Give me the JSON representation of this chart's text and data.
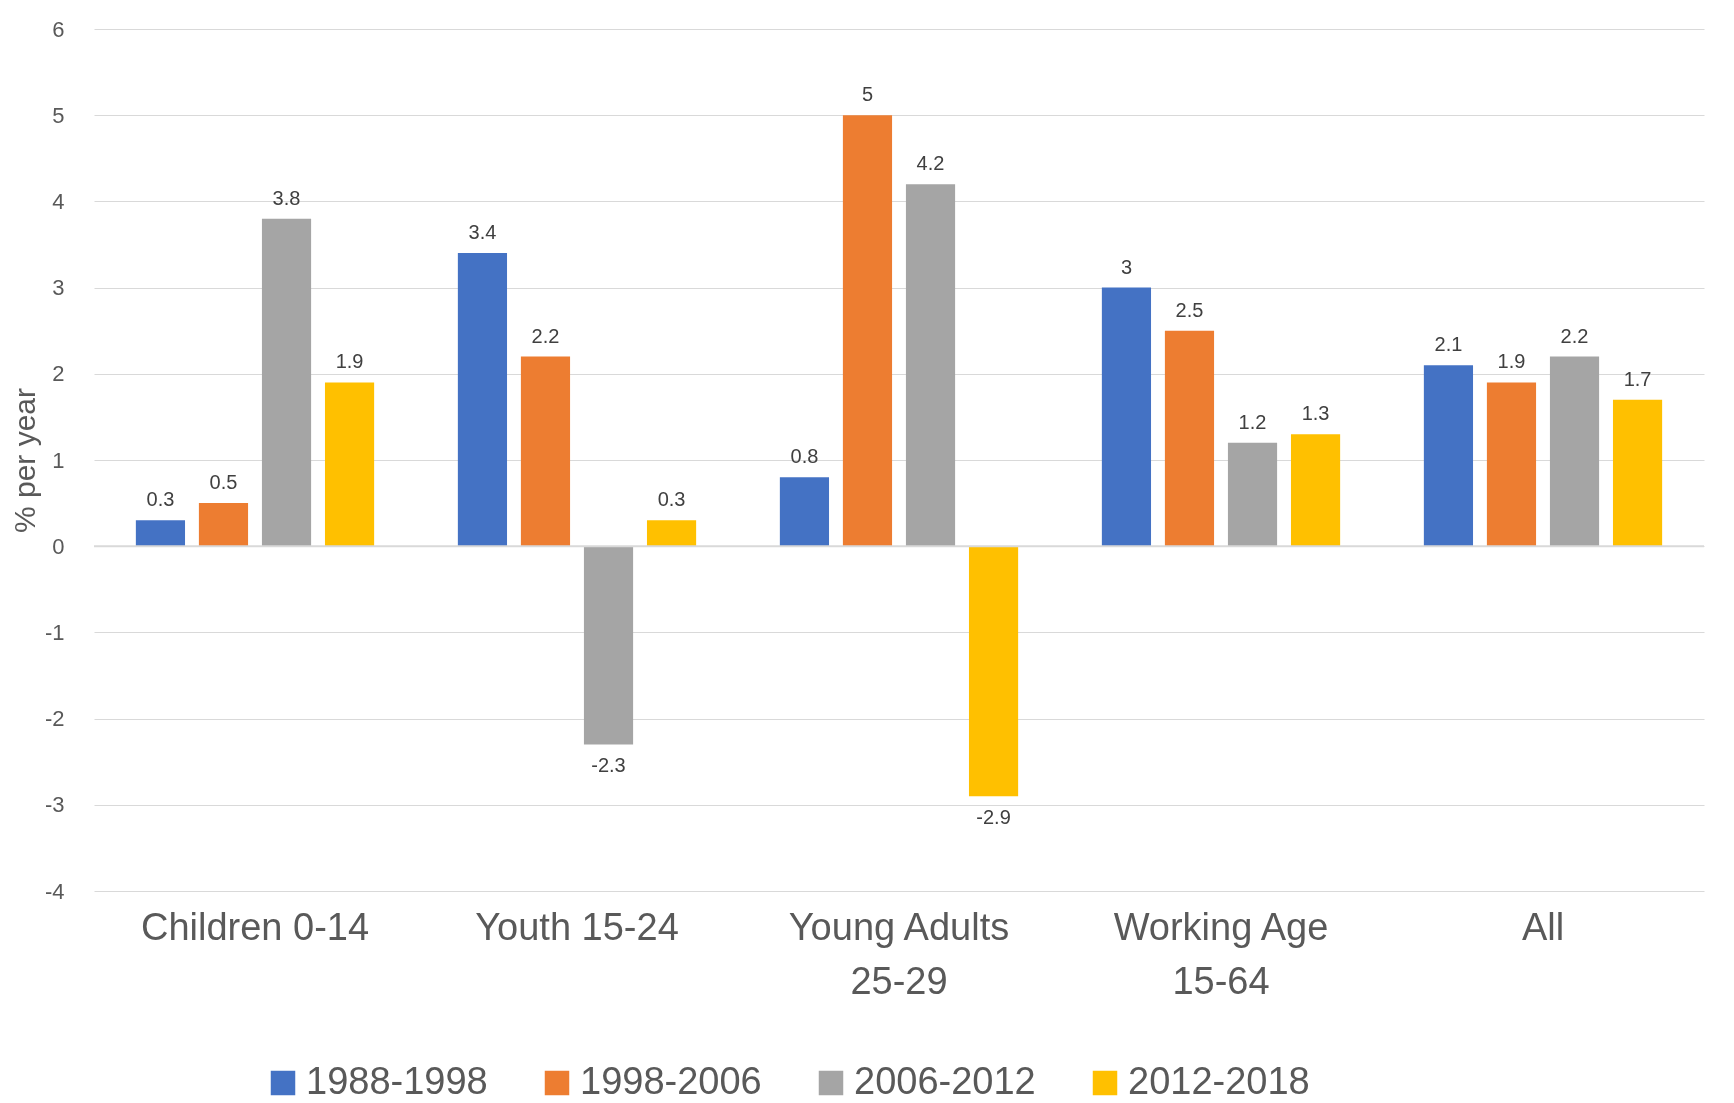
{
  "chart_data": {
    "type": "bar",
    "ylabel": "% per year",
    "categories": [
      "Children 0-14",
      "Youth 15-24",
      "Young Adults 25-29",
      "Working Age 15-64",
      "All"
    ],
    "series": [
      {
        "name": "1988-1998",
        "color": "#4472c4",
        "values": [
          0.3,
          3.4,
          0.8,
          3,
          2.1
        ]
      },
      {
        "name": "1998-2006",
        "color": "#ed7d31",
        "values": [
          0.5,
          2.2,
          5,
          2.5,
          1.9
        ]
      },
      {
        "name": "2006-2012",
        "color": "#a5a5a5",
        "values": [
          3.8,
          -2.3,
          4.2,
          1.2,
          2.2
        ]
      },
      {
        "name": "2012-2018",
        "color": "#ffc000",
        "values": [
          1.9,
          0.3,
          -2.9,
          1.3,
          1.7
        ]
      }
    ],
    "ylim": [
      -4,
      6
    ],
    "yticks": [
      -4,
      -3,
      -2,
      -1,
      0,
      1,
      2,
      3,
      4,
      5,
      6
    ],
    "grid": "y",
    "legend": "bottom",
    "data_labels": true
  }
}
